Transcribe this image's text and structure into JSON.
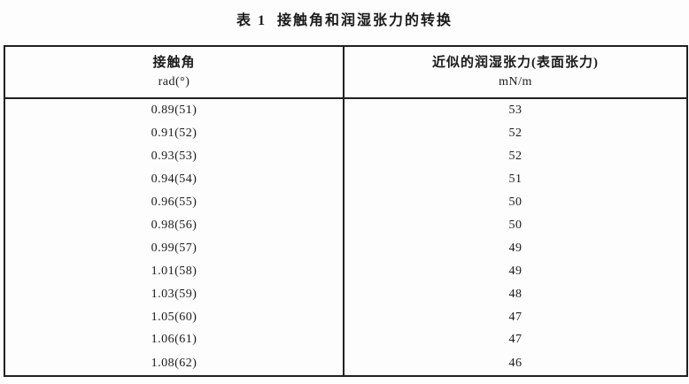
{
  "title": {
    "prefix": "表 1",
    "text": "接触角和润湿张力的转换"
  },
  "table": {
    "columns": [
      {
        "name": "接触角",
        "unit": "rad(°)"
      },
      {
        "name": "近似的润湿张力(表面张力)",
        "unit": "mN/m"
      }
    ],
    "rows": [
      {
        "angle": "0.89(51)",
        "tension": "53"
      },
      {
        "angle": "0.91(52)",
        "tension": "52"
      },
      {
        "angle": "0.93(53)",
        "tension": "52"
      },
      {
        "angle": "0.94(54)",
        "tension": "51"
      },
      {
        "angle": "0.96(55)",
        "tension": "50"
      },
      {
        "angle": "0.98(56)",
        "tension": "50"
      },
      {
        "angle": "0.99(57)",
        "tension": "49"
      },
      {
        "angle": "1.01(58)",
        "tension": "49"
      },
      {
        "angle": "1.03(59)",
        "tension": "48"
      },
      {
        "angle": "1.05(60)",
        "tension": "47"
      },
      {
        "angle": "1.06(61)",
        "tension": "47"
      },
      {
        "angle": "1.08(62)",
        "tension": "46"
      }
    ]
  }
}
